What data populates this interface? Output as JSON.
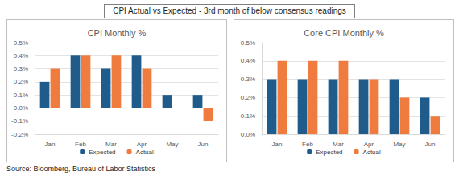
{
  "title": "CPI Actual vs Expected - 3rd month of below consensus readings",
  "source": "Source: Bloomberg, Bureau of Labor Statistics",
  "chart_data": [
    {
      "type": "bar",
      "title": "CPI Monthly %",
      "categories": [
        "Jan",
        "Feb",
        "Mar",
        "Apr",
        "May",
        "Jun"
      ],
      "series": [
        {
          "name": "Expected",
          "color": "#1f5c8b",
          "values": [
            0.2,
            0.4,
            0.3,
            0.4,
            0.1,
            0.1
          ]
        },
        {
          "name": "Actual",
          "color": "#f07b3f",
          "values": [
            0.3,
            0.4,
            0.4,
            0.3,
            0.0,
            -0.1
          ]
        }
      ],
      "ylim": [
        -0.2,
        0.5
      ],
      "yticks": [
        {
          "value": -0.2,
          "label": "-0.2%"
        },
        {
          "value": -0.1,
          "label": "-0.1%"
        },
        {
          "value": 0,
          "label": "0.0%"
        },
        {
          "value": 0.1,
          "label": "0.1%"
        },
        {
          "value": 0.2,
          "label": "0.2%"
        },
        {
          "value": 0.3,
          "label": "0.3%"
        },
        {
          "value": 0.4,
          "label": "0.4%"
        },
        {
          "value": 0.5,
          "label": "0.5%"
        }
      ],
      "grid": true,
      "legend": "bottom"
    },
    {
      "type": "bar",
      "title": "Core CPI Monthly %",
      "categories": [
        "Jan",
        "Feb",
        "Mar",
        "Apr",
        "May",
        "Jun"
      ],
      "series": [
        {
          "name": "Expected",
          "color": "#1f5c8b",
          "values": [
            0.3,
            0.3,
            0.3,
            0.3,
            0.3,
            0.2
          ]
        },
        {
          "name": "Actual",
          "color": "#f07b3f",
          "values": [
            0.4,
            0.4,
            0.4,
            0.3,
            0.2,
            0.1
          ]
        }
      ],
      "ylim": [
        0,
        0.5
      ],
      "yticks": [
        {
          "value": 0,
          "label": "0.0%"
        },
        {
          "value": 0.1,
          "label": "0.1%"
        },
        {
          "value": 0.2,
          "label": "0.2%"
        },
        {
          "value": 0.3,
          "label": "0.3%"
        },
        {
          "value": 0.4,
          "label": "0.4%"
        },
        {
          "value": 0.5,
          "label": "0.5%"
        }
      ],
      "grid": true,
      "legend": "bottom"
    }
  ]
}
